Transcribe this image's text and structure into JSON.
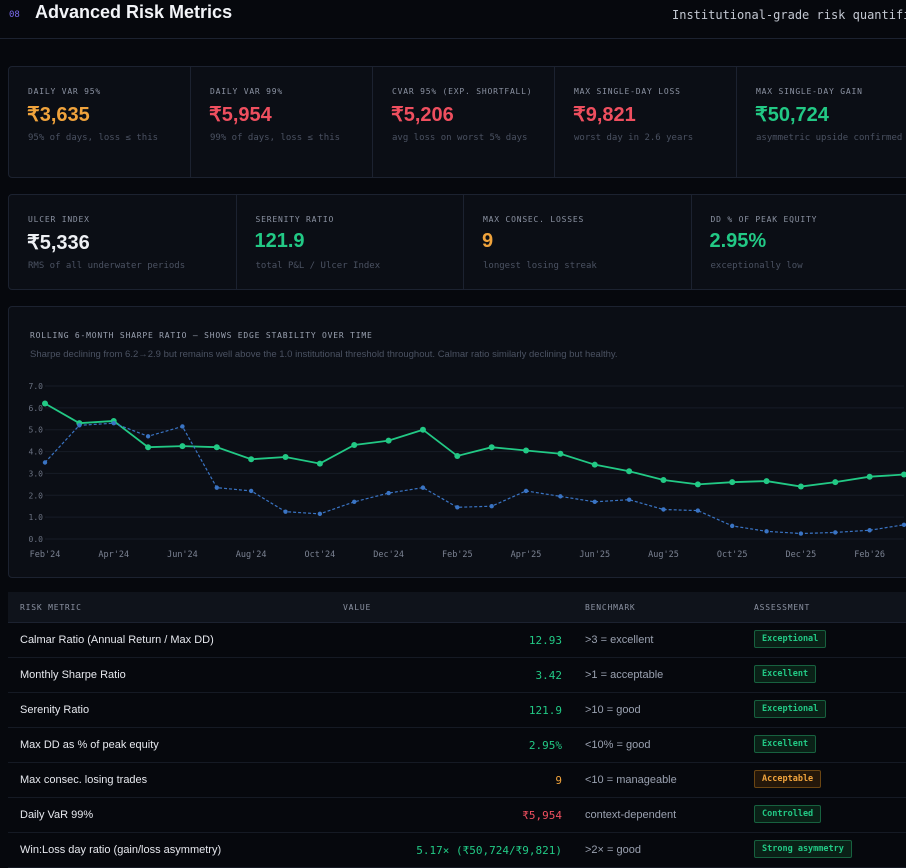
{
  "header": {
    "section_number": "08",
    "title": "Advanced Risk Metrics",
    "subtitle": "Institutional-grade risk quantificat"
  },
  "cards_row1": [
    {
      "label": "DAILY VAR 95%",
      "value": "₹3,635",
      "sub": "95% of days, loss ≤ this",
      "color": "#f0a33c"
    },
    {
      "label": "DAILY VAR 99%",
      "value": "₹5,954",
      "sub": "99% of days, loss ≤ this",
      "color": "#ef4f5f"
    },
    {
      "label": "CVAR 95% (EXP. SHORTFALL)",
      "value": "₹5,206",
      "sub": "avg loss on worst 5% days",
      "color": "#ef4f5f"
    },
    {
      "label": "MAX SINGLE-DAY LOSS",
      "value": "₹9,821",
      "sub": "worst day in 2.6 years",
      "color": "#ef4f5f"
    },
    {
      "label": "MAX SINGLE-DAY GAIN",
      "value": "₹50,724",
      "sub": "asymmetric upside confirmed",
      "color": "#22c985"
    }
  ],
  "cards_row2": [
    {
      "label": "ULCER INDEX",
      "value": "₹5,336",
      "sub": "RMS of all underwater periods",
      "color": "#eef0f4"
    },
    {
      "label": "SERENITY RATIO",
      "value": "121.9",
      "sub": "total P&L / Ulcer Index",
      "color": "#22c985"
    },
    {
      "label": "MAX CONSEC. LOSSES",
      "value": "9",
      "sub": "longest losing streak",
      "color": "#f0a33c"
    },
    {
      "label": "DD % OF PEAK EQUITY",
      "value": "2.95%",
      "sub": "exceptionally low",
      "color": "#22c985"
    }
  ],
  "chart_panel": {
    "title": "ROLLING 6-MONTH SHARPE RATIO — SHOWS EDGE STABILITY OVER TIME",
    "note": "Sharpe declining from 6.2→2.9 but remains well above the 1.0 institutional threshold throughout. Calmar ratio similarly declining but healthy."
  },
  "chart_data": {
    "type": "line",
    "y_ticks": [
      "7.0",
      "6.0",
      "5.0",
      "4.0",
      "3.0",
      "2.0",
      "1.0",
      "0.0"
    ],
    "ylim": [
      0,
      7
    ],
    "x_ticks": [
      "Feb'24",
      "Apr'24",
      "Jun'24",
      "Aug'24",
      "Oct'24",
      "Dec'24",
      "Feb'25",
      "Apr'25",
      "Jun'25",
      "Aug'25",
      "Oct'25",
      "Dec'25",
      "Feb'26"
    ],
    "x_count": 26,
    "grid": true,
    "series": [
      {
        "style": "solid",
        "color": "#22c985",
        "values": [
          6.2,
          5.3,
          5.4,
          4.2,
          4.25,
          4.2,
          3.65,
          3.75,
          3.45,
          4.3,
          4.5,
          5.0,
          3.8,
          4.2,
          4.05,
          3.9,
          3.4,
          3.1,
          2.7,
          2.5,
          2.6,
          2.65,
          2.4,
          2.6,
          2.85,
          2.95
        ]
      },
      {
        "style": "dashed",
        "color": "#3a74c4",
        "values": [
          3.5,
          5.2,
          5.3,
          4.7,
          5.15,
          2.35,
          2.2,
          1.25,
          1.15,
          1.7,
          2.1,
          2.35,
          1.45,
          1.5,
          2.2,
          1.95,
          1.7,
          1.8,
          1.35,
          1.3,
          0.6,
          0.35,
          0.25,
          0.3,
          0.4,
          0.65
        ]
      }
    ]
  },
  "table": {
    "headers": [
      "RISK METRIC",
      "VALUE",
      "BENCHMARK",
      "ASSESSMENT"
    ],
    "rows": [
      {
        "metric": "Calmar Ratio (Annual Return / Max DD)",
        "value": "12.93",
        "value_color": "#22c985",
        "benchmark": ">3 = excellent",
        "assessment": "Exceptional",
        "tone": "good"
      },
      {
        "metric": "Monthly Sharpe Ratio",
        "value": "3.42",
        "value_color": "#22c985",
        "benchmark": ">1 = acceptable",
        "assessment": "Excellent",
        "tone": "good"
      },
      {
        "metric": "Serenity Ratio",
        "value": "121.9",
        "value_color": "#22c985",
        "benchmark": ">10 = good",
        "assessment": "Exceptional",
        "tone": "good"
      },
      {
        "metric": "Max DD as % of peak equity",
        "value": "2.95%",
        "value_color": "#22c985",
        "benchmark": "<10% = good",
        "assessment": "Excellent",
        "tone": "good"
      },
      {
        "metric": "Max consec. losing trades",
        "value": "9",
        "value_color": "#f0a33c",
        "benchmark": "<10 = manageable",
        "assessment": "Acceptable",
        "tone": "warn"
      },
      {
        "metric": "Daily VaR 99%",
        "value": "₹5,954",
        "value_color": "#ef4f5f",
        "benchmark": "context-dependent",
        "assessment": "Controlled",
        "tone": "good"
      },
      {
        "metric": "Win:Loss day ratio (gain/loss asymmetry)",
        "value": "5.17× (₹50,724/₹9,821)",
        "value_color": "#22c985",
        "benchmark": ">2× = good",
        "assessment": "Strong asymmetry",
        "tone": "good"
      }
    ]
  }
}
